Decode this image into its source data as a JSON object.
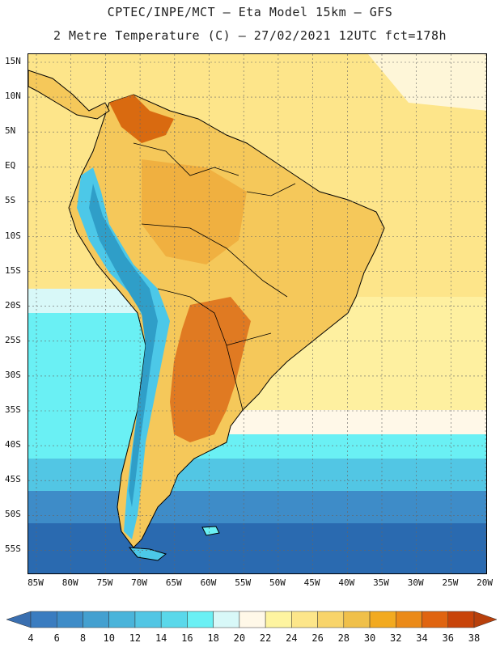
{
  "header": {
    "title_line1": "CPTEC/INPE/MCT –  Eta Model 15km – GFS",
    "title_line2": "2 Metre Temperature (C) – 27/02/2021 12UTC fct=178h"
  },
  "map": {
    "lat_labels": [
      "15N",
      "10N",
      "5N",
      "EQ",
      "5S",
      "10S",
      "15S",
      "20S",
      "25S",
      "30S",
      "35S",
      "40S",
      "45S",
      "50S",
      "55S"
    ],
    "lon_labels": [
      "85W",
      "80W",
      "75W",
      "70W",
      "65W",
      "60W",
      "55W",
      "50W",
      "45W",
      "40W",
      "35W",
      "30W",
      "25W",
      "20W"
    ],
    "colors": {
      "ocean_tropical": "#fde58a",
      "ocean_subtropical": "#fef7a0",
      "ocean_temperate": "#60e6f0",
      "ocean_cold": "#3a8ec8",
      "ocean_polar": "#2a6ab0",
      "land_hot": "#d96a10",
      "land_warm": "#f0b040",
      "andes_cold": "#4cc8e8",
      "coastline": "#000000"
    }
  },
  "colorbar": {
    "labels": [
      "4",
      "6",
      "8",
      "10",
      "12",
      "14",
      "16",
      "18",
      "20",
      "22",
      "24",
      "26",
      "28",
      "30",
      "32",
      "34",
      "36",
      "38"
    ],
    "low_arrow_color": "#3a6fb0",
    "high_arrow_color": "#b8400c",
    "colors": [
      "#3a7cc0",
      "#3e8cc8",
      "#44a0d0",
      "#4ab4da",
      "#52c6e4",
      "#5ad8ea",
      "#6af0f4",
      "#d8f8f8",
      "#fff8e8",
      "#fef4a0",
      "#fde68a",
      "#f8d46a",
      "#f0c04a",
      "#f2aa20",
      "#eb8a18",
      "#e06410",
      "#c8440a"
    ]
  }
}
